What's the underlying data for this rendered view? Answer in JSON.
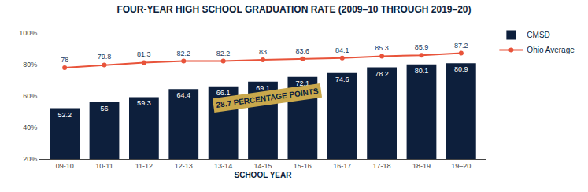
{
  "chart_data": {
    "type": "bar",
    "title": "FOUR-YEAR HIGH SCHOOL GRADUATION RATE (2009–10 THROUGH 2019–20)",
    "xlabel": "SCHOOL YEAR",
    "categories": [
      "09-10",
      "10-11",
      "11-12",
      "12-13",
      "13-14",
      "14-15",
      "15-16",
      "16-17",
      "17-18",
      "18-19",
      "19–20"
    ],
    "series": [
      {
        "name": "CMSD",
        "type": "bar",
        "color": "#0d1f3c",
        "values": [
          52.2,
          56,
          59.3,
          64.4,
          66.1,
          69.1,
          72.1,
          74.6,
          78.2,
          80.1,
          80.9
        ]
      },
      {
        "name": "Ohio Average",
        "type": "line",
        "color": "#e8533a",
        "marker": "circle",
        "values": [
          78,
          79.8,
          81.3,
          82.2,
          82.2,
          83,
          83.6,
          84.1,
          85.3,
          85.9,
          87.2
        ]
      }
    ],
    "ylim": [
      20,
      106
    ],
    "yticks": [
      {
        "value": 20,
        "label": "20%"
      },
      {
        "value": 40,
        "label": "40%"
      },
      {
        "value": 60,
        "label": "60%"
      },
      {
        "value": 80,
        "label": "80%"
      },
      {
        "value": 100,
        "label": "100%"
      }
    ],
    "grid": false,
    "legend": "upper right",
    "data_labels": true,
    "annotations": [
      "28.7 PERCENTAGE POINTS"
    ]
  }
}
